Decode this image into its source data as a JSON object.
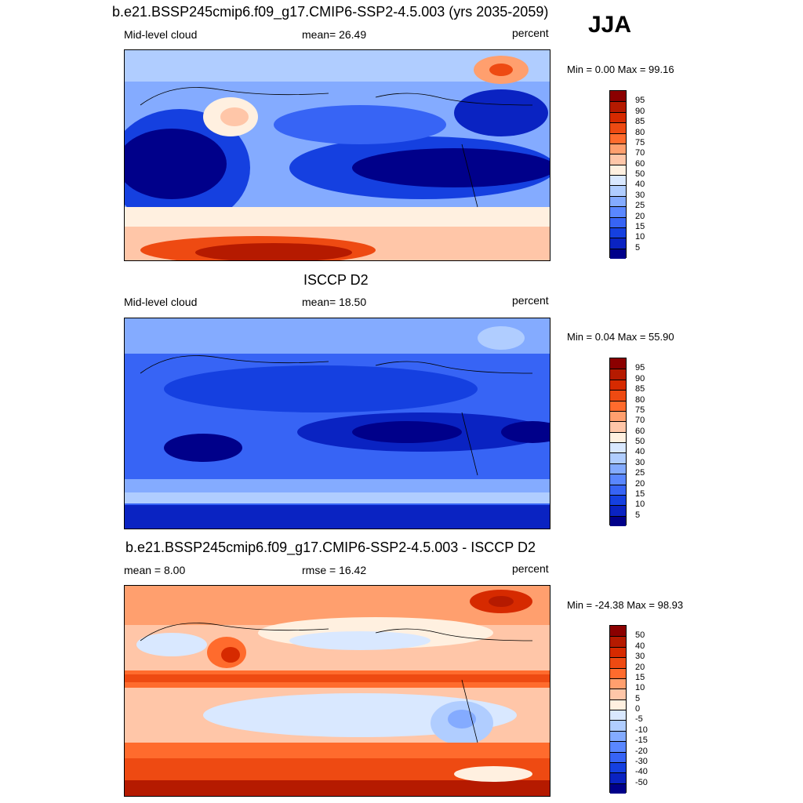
{
  "season": "JJA",
  "panels": [
    {
      "title": "b.e21.BSSP245cmip6.f09_g17.CMIP6-SSP2-4.5.003 (yrs 2035-2059)",
      "left_label": "Mid-level cloud",
      "center_label": "mean=  26.49",
      "right_label": "percent",
      "minmax": "Min =    0.00 Max =  99.16",
      "colorbar": {
        "colors": [
          "#8b0000",
          "#b51a00",
          "#d62a00",
          "#ee4a12",
          "#ff6b2d",
          "#ff9f6e",
          "#ffc6a8",
          "#fff0e0",
          "#d9e8ff",
          "#b0cdff",
          "#84abff",
          "#5a87ff",
          "#3764f5",
          "#1540e0",
          "#0a23c2",
          "#00008a"
        ],
        "labels": [
          "95",
          "90",
          "85",
          "80",
          "75",
          "70",
          "60",
          "50",
          "40",
          "30",
          "25",
          "20",
          "15",
          "10",
          "5"
        ]
      }
    },
    {
      "title": "ISCCP D2",
      "left_label": "Mid-level cloud",
      "center_label": "mean=  18.50",
      "right_label": "percent",
      "minmax": "Min =    0.04 Max =  55.90",
      "colorbar": {
        "colors": [
          "#8b0000",
          "#b51a00",
          "#d62a00",
          "#ee4a12",
          "#ff6b2d",
          "#ff9f6e",
          "#ffc6a8",
          "#fff0e0",
          "#d9e8ff",
          "#b0cdff",
          "#84abff",
          "#5a87ff",
          "#3764f5",
          "#1540e0",
          "#0a23c2",
          "#00008a"
        ],
        "labels": [
          "95",
          "90",
          "85",
          "80",
          "75",
          "70",
          "60",
          "50",
          "40",
          "30",
          "25",
          "20",
          "15",
          "10",
          "5"
        ]
      }
    },
    {
      "title": "b.e21.BSSP245cmip6.f09_g17.CMIP6-SSP2-4.5.003 - ISCCP D2",
      "left_label": "mean =   8.00",
      "center_label": "rmse =  16.42",
      "right_label": "percent",
      "minmax": "Min = -24.38 Max =  98.93",
      "colorbar": {
        "colors": [
          "#8b0000",
          "#b51a00",
          "#d62a00",
          "#ee4a12",
          "#ff6b2d",
          "#ff9f6e",
          "#ffc6a8",
          "#fff0e0",
          "#d9e8ff",
          "#b0cdff",
          "#84abff",
          "#5a87ff",
          "#3764f5",
          "#1540e0",
          "#0a23c2",
          "#00008a"
        ],
        "labels": [
          "50",
          "40",
          "30",
          "20",
          "15",
          "10",
          "5",
          "0",
          "-5",
          "-10",
          "-15",
          "-20",
          "-30",
          "-40",
          "-50"
        ]
      }
    }
  ]
}
